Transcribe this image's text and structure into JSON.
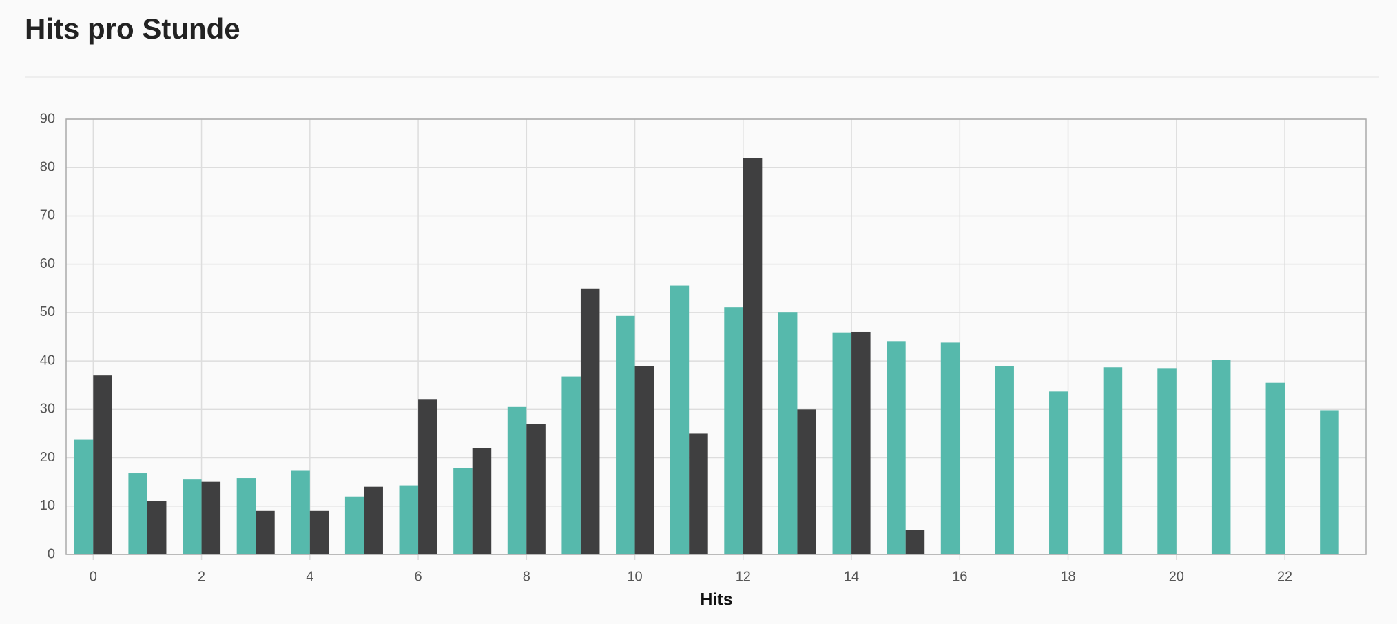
{
  "chart_data": {
    "type": "bar",
    "title": "Hits pro Stunde",
    "x_label": "Hits",
    "x": [
      0,
      1,
      2,
      3,
      4,
      5,
      6,
      7,
      8,
      9,
      10,
      11,
      12,
      13,
      14,
      15,
      16,
      17,
      18,
      19,
      20,
      21,
      22,
      23
    ],
    "series": [
      {
        "color": "#56b9ac",
        "values": [
          23.7,
          16.8,
          15.5,
          15.8,
          17.3,
          12,
          14.3,
          17.9,
          30.5,
          36.8,
          49.3,
          55.6,
          51.1,
          50.1,
          45.9,
          44.1,
          43.8,
          38.9,
          33.7,
          38.7,
          38.4,
          40.3,
          35.5,
          29.7
        ]
      },
      {
        "color": "#3f3f40",
        "values": [
          37,
          11,
          15,
          9,
          9,
          14,
          32,
          22,
          27,
          55,
          39,
          25,
          82,
          30,
          46,
          5,
          null,
          null,
          null,
          null,
          null,
          null,
          null,
          null
        ]
      }
    ],
    "xlim": [
      -0.5,
      23.5
    ],
    "xticks": [
      0,
      2,
      4,
      6,
      8,
      10,
      12,
      14,
      16,
      18,
      20,
      22
    ],
    "ylim": [
      0,
      90
    ],
    "yticks": [
      0,
      10,
      20,
      30,
      40,
      50,
      60,
      70,
      80,
      90
    ],
    "grid": true
  }
}
